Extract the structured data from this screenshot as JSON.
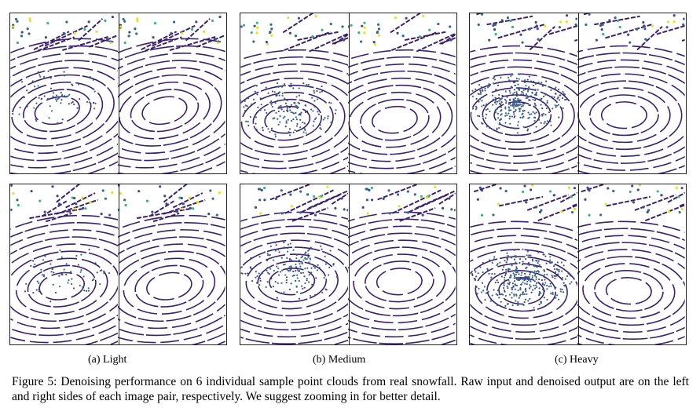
{
  "figure": {
    "subfigures": [
      {
        "caption": "(a) Light",
        "density": "light"
      },
      {
        "caption": "(b) Medium",
        "density": "medium"
      },
      {
        "caption": "(c) Heavy",
        "density": "heavy"
      }
    ],
    "caption": "Figure 5: Denoising performance on 6 individual sample point clouds from real snowfall. Raw input and denoised output are on the left and right sides of each image pair, respectively. We suggest zooming in for better detail."
  },
  "colors": {
    "ring": "#3b1f6e",
    "noise_dark": "#3e4a89",
    "noise_teal": "#31688e",
    "noise_green": "#35b779",
    "noise_yellow": "#e5e419"
  }
}
